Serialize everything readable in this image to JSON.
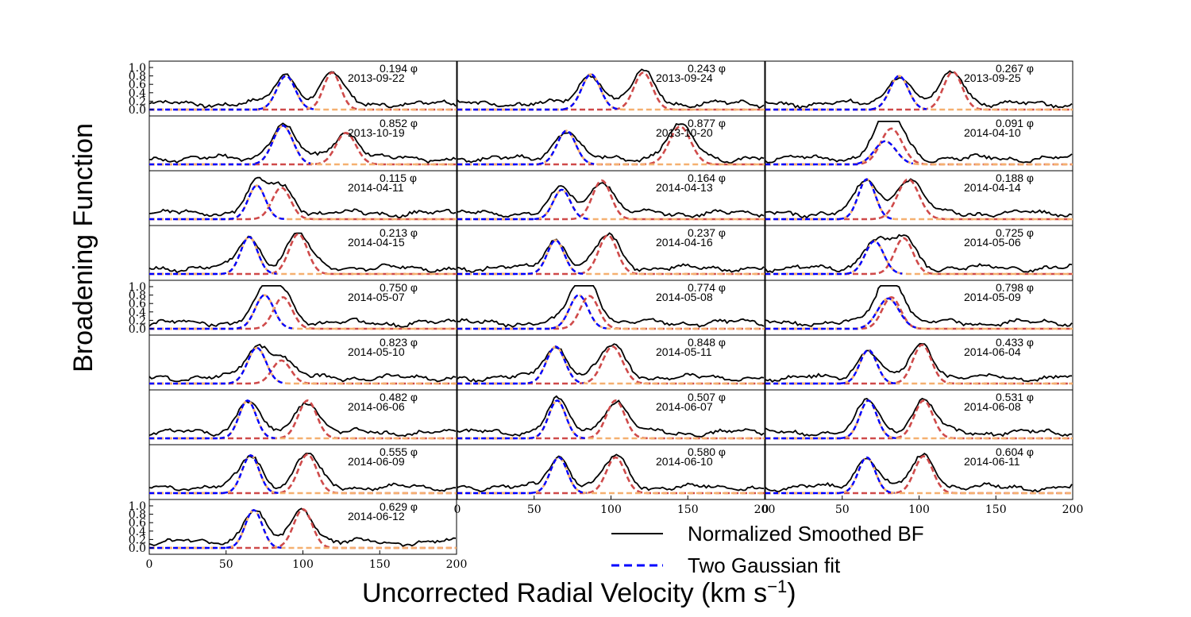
{
  "figure": {
    "ylabel": "Broadening Function",
    "xlabel": "Uncorrected Radial Velocity (km s",
    "xlabel_sup": "−1",
    "xlabel_end": ")"
  },
  "legend": {
    "entries": [
      {
        "label": "Normalized Smoothed BF",
        "color": "#000000",
        "style": "solid"
      },
      {
        "label": "Two Gaussian fit",
        "color": "#0000ff",
        "style": "dashed"
      }
    ]
  },
  "colors": {
    "bf": "#000000",
    "fit": "#0000ff",
    "gauss1": "#f5b070",
    "gauss2": "#cf4a4a",
    "baseline_light": "#f5b070",
    "baseline_dark": "#d9534f"
  },
  "chart_data": {
    "type": "line",
    "xlim": [
      0,
      200
    ],
    "ylim": [
      0.0,
      1.0
    ],
    "xticks": [
      "0",
      "50",
      "100",
      "150",
      "200"
    ],
    "yticks": [
      "0.0",
      "0.2",
      "0.4",
      "0.6",
      "0.8",
      "1.0"
    ],
    "phase_symbol": "φ",
    "panels": [
      {
        "phase": "0.194",
        "date": "2013-09-22",
        "v1": 89,
        "v2": 119,
        "w1": 6,
        "w2": 5.5,
        "a1": 0.8,
        "a2": 0.88
      },
      {
        "phase": "0.243",
        "date": "2013-09-24",
        "v1": 87,
        "v2": 121,
        "w1": 6,
        "w2": 6,
        "a1": 0.84,
        "a2": 0.88
      },
      {
        "phase": "0.267",
        "date": "2013-09-25",
        "v1": 87,
        "v2": 122,
        "w1": 6,
        "w2": 6,
        "a1": 0.8,
        "a2": 0.9
      },
      {
        "phase": "0.852",
        "date": "2013-10-19",
        "v1": 87,
        "v2": 128,
        "w1": 6.5,
        "w2": 6.5,
        "a1": 0.92,
        "a2": 0.75
      },
      {
        "phase": "0.877",
        "date": "2013-10-20",
        "v1": 71,
        "v2": 145,
        "w1": 6,
        "w2": 7,
        "a1": 0.8,
        "a2": 0.9
      },
      {
        "phase": "0.091",
        "date": "2014-04-10",
        "v1": 78,
        "v2": 82,
        "w1": 7,
        "w2": 7,
        "a1": 0.55,
        "a2": 0.85
      },
      {
        "phase": "0.115",
        "date": "2014-04-11",
        "v1": 70,
        "v2": 86,
        "w1": 5.5,
        "w2": 6,
        "a1": 0.8,
        "a2": 0.75
      },
      {
        "phase": "0.164",
        "date": "2014-04-13",
        "v1": 68,
        "v2": 94,
        "w1": 5.5,
        "w2": 6,
        "a1": 0.7,
        "a2": 0.92
      },
      {
        "phase": "0.188",
        "date": "2014-04-14",
        "v1": 66,
        "v2": 93,
        "w1": 5.5,
        "w2": 7,
        "a1": 0.95,
        "a2": 0.95
      },
      {
        "phase": "0.213",
        "date": "2014-04-15",
        "v1": 65,
        "v2": 97,
        "w1": 5.5,
        "w2": 6,
        "a1": 0.88,
        "a2": 0.95
      },
      {
        "phase": "0.237",
        "date": "2014-04-16",
        "v1": 64,
        "v2": 98,
        "w1": 5.5,
        "w2": 6,
        "a1": 0.8,
        "a2": 0.92
      },
      {
        "phase": "0.725",
        "date": "2014-05-06",
        "v1": 71,
        "v2": 90,
        "w1": 6,
        "w2": 6,
        "a1": 0.78,
        "a2": 0.85
      },
      {
        "phase": "0.750",
        "date": "2014-05-07",
        "v1": 75,
        "v2": 87,
        "w1": 6,
        "w2": 6,
        "a1": 0.8,
        "a2": 0.75
      },
      {
        "phase": "0.774",
        "date": "2014-05-08",
        "v1": 79,
        "v2": 86,
        "w1": 6,
        "w2": 6,
        "a1": 0.8,
        "a2": 0.78
      },
      {
        "phase": "0.798",
        "date": "2014-05-09",
        "v1": 80,
        "v2": 82,
        "w1": 7,
        "w2": 6,
        "a1": 0.72,
        "a2": 0.75
      },
      {
        "phase": "0.823",
        "date": "2014-05-10",
        "v1": 70,
        "v2": 86,
        "w1": 6,
        "w2": 6,
        "a1": 0.85,
        "a2": 0.55
      },
      {
        "phase": "0.848",
        "date": "2014-05-11",
        "v1": 64,
        "v2": 101,
        "w1": 6,
        "w2": 6.5,
        "a1": 0.88,
        "a2": 0.88
      },
      {
        "phase": "0.433",
        "date": "2014-06-04",
        "v1": 67,
        "v2": 102,
        "w1": 5.5,
        "w2": 6,
        "a1": 0.8,
        "a2": 0.92
      },
      {
        "phase": "0.482",
        "date": "2014-06-06",
        "v1": 64,
        "v2": 103,
        "w1": 5.5,
        "w2": 6,
        "a1": 0.9,
        "a2": 0.9
      },
      {
        "phase": "0.507",
        "date": "2014-06-07",
        "v1": 65,
        "v2": 103,
        "w1": 5.5,
        "w2": 6,
        "a1": 0.9,
        "a2": 0.9
      },
      {
        "phase": "0.531",
        "date": "2014-06-08",
        "v1": 67,
        "v2": 103,
        "w1": 5.5,
        "w2": 6,
        "a1": 0.9,
        "a2": 0.9
      },
      {
        "phase": "0.555",
        "date": "2014-06-09",
        "v1": 66,
        "v2": 103,
        "w1": 5.5,
        "w2": 6,
        "a1": 0.9,
        "a2": 0.92
      },
      {
        "phase": "0.580",
        "date": "2014-06-10",
        "v1": 66,
        "v2": 103,
        "w1": 5.5,
        "w2": 6,
        "a1": 0.85,
        "a2": 0.85
      },
      {
        "phase": "0.604",
        "date": "2014-06-11",
        "v1": 66,
        "v2": 103,
        "w1": 5.5,
        "w2": 6,
        "a1": 0.85,
        "a2": 0.88
      },
      {
        "phase": "0.629",
        "date": "2014-06-12",
        "v1": 68,
        "v2": 100,
        "w1": 5.5,
        "w2": 6,
        "a1": 0.9,
        "a2": 0.92
      }
    ]
  }
}
